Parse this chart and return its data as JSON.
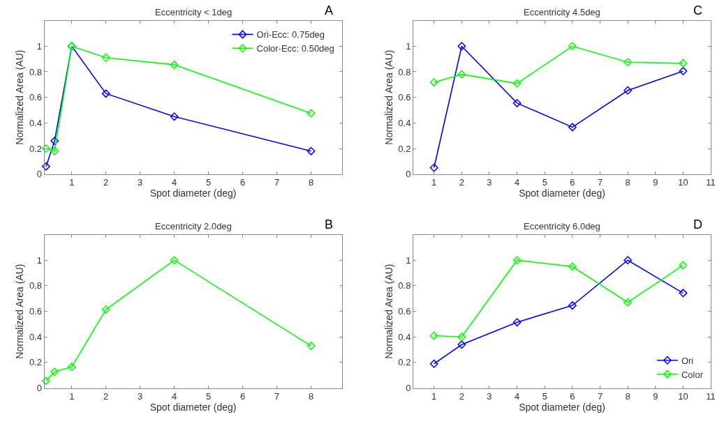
{
  "chart_data": [
    {
      "type": "line",
      "title": "Eccentricity < 1deg",
      "annotations": [
        "A"
      ],
      "xlabel": "Spot diameter (deg)",
      "ylabel": "Normalized Area (AU)",
      "x": [
        0.25,
        0.5,
        1,
        2,
        4,
        8
      ],
      "series": [
        {
          "name": "Ori-Ecc: 0.75deg",
          "color": "#0000ff",
          "values": [
            0.06,
            0.26,
            1,
            0.63,
            0.45,
            0.18
          ]
        },
        {
          "name": "Color-Ecc: 0.50deg",
          "color": "#00ff00",
          "values": [
            0.2,
            0.18,
            1,
            0.91,
            0.855,
            0.475
          ]
        }
      ],
      "xlim": [
        0.2,
        8.9
      ],
      "xticks": [
        1,
        2,
        3,
        4,
        5,
        6,
        7,
        8
      ],
      "ylim": [
        0,
        1.2
      ],
      "yticks": [
        0,
        0.2,
        0.4,
        0.6,
        0.8,
        1
      ],
      "grid": false,
      "legend": "top right",
      "marker": "diamond",
      "line_style": "solid"
    },
    {
      "type": "line",
      "title": "Eccentricity 4.5deg",
      "annotations": [
        "C"
      ],
      "xlabel": "Spot diameter (deg)",
      "ylabel": "Normalized Area (AU)",
      "x": [
        1,
        2,
        4,
        6,
        8,
        10
      ],
      "series": [
        {
          "color": "#0000ff",
          "values": [
            0.05,
            1,
            0.555,
            0.367,
            0.654,
            0.805
          ]
        },
        {
          "color": "#00ff00",
          "values": [
            0.717,
            0.78,
            0.708,
            1,
            0.875,
            0.866
          ]
        }
      ],
      "xlim": [
        0.25,
        11
      ],
      "xticks": [
        1,
        2,
        3,
        4,
        5,
        6,
        7,
        8,
        9,
        10,
        11
      ],
      "ylim": [
        0,
        1.2
      ],
      "yticks": [
        0,
        0.2,
        0.4,
        0.6,
        0.8,
        1
      ],
      "grid": false,
      "marker": "diamond",
      "line_style": "solid"
    },
    {
      "type": "line",
      "title": "Eccentricity 2.0deg",
      "annotations": [
        "B"
      ],
      "xlabel": "Spot diameter (deg)",
      "ylabel": "Normalized Area (AU)",
      "x": [
        0.25,
        0.5,
        1,
        2,
        4,
        8
      ],
      "series": [
        {
          "color": "#00ff00",
          "values": [
            0.057,
            0.127,
            0.165,
            0.614,
            1,
            0.33
          ]
        }
      ],
      "xlim": [
        0.2,
        8.9
      ],
      "xticks": [
        1,
        2,
        3,
        4,
        5,
        6,
        7,
        8
      ],
      "ylim": [
        0,
        1.2
      ],
      "yticks": [
        0,
        0.2,
        0.4,
        0.6,
        0.8,
        1
      ],
      "grid": false,
      "marker": "diamond",
      "line_style": "solid"
    },
    {
      "type": "line",
      "title": "Eccentricity 6.0deg",
      "annotations": [
        "D"
      ],
      "xlabel": "Spot diameter (deg)",
      "ylabel": "Normalized Area (AU)",
      "x": [
        1,
        2,
        4,
        6,
        8,
        10
      ],
      "series": [
        {
          "name": "Ori",
          "color": "#0000ff",
          "values": [
            0.19,
            0.34,
            0.515,
            0.646,
            1,
            0.743
          ]
        },
        {
          "name": "Color",
          "color": "#00ff00",
          "values": [
            0.41,
            0.4,
            1,
            0.95,
            0.67,
            0.96
          ]
        }
      ],
      "xlim": [
        0.25,
        11
      ],
      "xticks": [
        1,
        2,
        3,
        4,
        5,
        6,
        7,
        8,
        9,
        10,
        11
      ],
      "ylim": [
        0,
        1.2
      ],
      "yticks": [
        0,
        0.2,
        0.4,
        0.6,
        0.8,
        1
      ],
      "grid": false,
      "legend": "bottom right",
      "marker": "diamond",
      "line_style": "solid"
    }
  ]
}
